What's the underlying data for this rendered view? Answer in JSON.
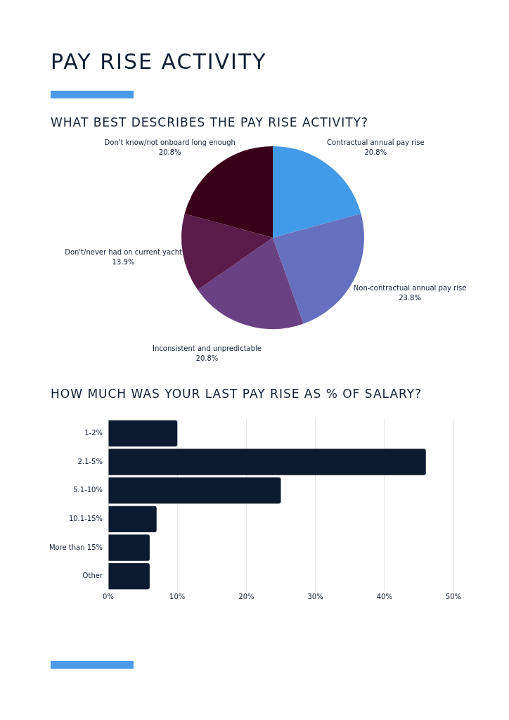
{
  "chart_data": [
    {
      "type": "pie",
      "title": "PAY RISE ACTIVITY",
      "subtitle": "WHAT BEST DESCRIBES THE PAY RISE ACTIVITY?",
      "categories": [
        "Contractual annual pay rise",
        "Non-contractual annual pay rise",
        "Inconsistent and unpredictable",
        "Don't/never had on current yacht",
        "Don't know/not onboard long enough"
      ],
      "values": [
        20.8,
        23.8,
        20.8,
        13.9,
        20.8
      ],
      "colors": [
        "#419be8",
        "#6670c0",
        "#6a4283",
        "#5a1b4a",
        "#3a0019"
      ],
      "value_labels": [
        "20.8%",
        "23.8%",
        "20.8%",
        "13.9%",
        "20.8%"
      ],
      "legend": false
    },
    {
      "type": "bar",
      "orientation": "horizontal",
      "title": "HOW MUCH WAS YOUR LAST PAY RISE AS % OF SALARY?",
      "categories": [
        "1-2%",
        "2.1-5%",
        "5.1-10%",
        "10.1-15%",
        "More than 15%",
        "Other"
      ],
      "values": [
        10,
        46,
        25,
        7,
        6,
        6
      ],
      "color": "#0b1a2e",
      "xlim": [
        0,
        50
      ],
      "xticks": [
        {
          "value": 0,
          "label": "0%"
        },
        {
          "value": 10,
          "label": "10%"
        },
        {
          "value": 20,
          "label": "20%"
        },
        {
          "value": 30,
          "label": "30%"
        },
        {
          "value": 40,
          "label": "40%"
        },
        {
          "value": 50,
          "label": "50%"
        }
      ],
      "grid": "x",
      "legend": false
    }
  ]
}
